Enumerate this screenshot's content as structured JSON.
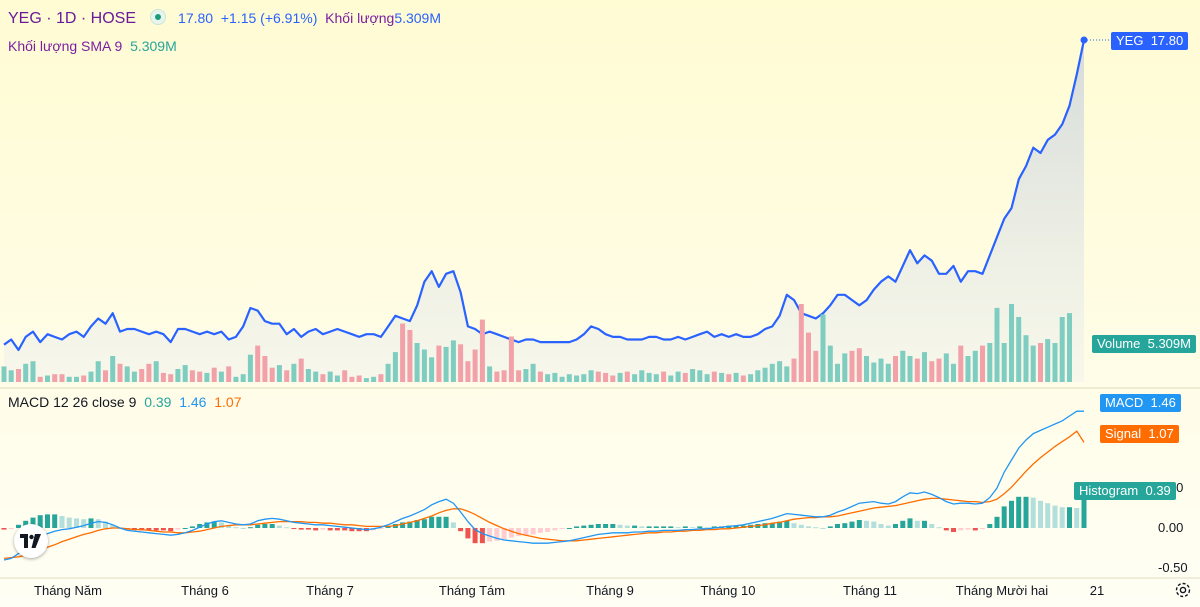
{
  "header": {
    "symbol": "YEG · 1D · HOSE",
    "price": "17.80",
    "change": "+1.15 (+6.91%)",
    "volume_label": "Khối lượng",
    "volume_value": "5.309M"
  },
  "sma_legend": {
    "label": "Khối lượng SMA 9",
    "value": "5.309M"
  },
  "macd_legend": {
    "label": "MACD 12 26 close 9",
    "hist": "0.39",
    "macd": "1.46",
    "signal": "1.07"
  },
  "tags": {
    "price": {
      "name": "YEG",
      "value": "17.80"
    },
    "volume": {
      "name": "Volume",
      "value": "5.309M"
    },
    "macd": {
      "name": "MACD",
      "value": "1.46"
    },
    "signal": {
      "name": "Signal",
      "value": "1.07"
    },
    "histogram": {
      "name": "Histogram",
      "value": "0.39"
    }
  },
  "colors": {
    "price_line": "#2962ff",
    "up": "#26a69a",
    "down": "#ef5350",
    "macd": "#2196f3",
    "signal": "#ff6d00",
    "histogram": "#26a69a",
    "bg_top": "#fffbd6",
    "bg_bottom": "#fffdf0"
  },
  "icons": {
    "logo": "tradingview-logo-icon",
    "settings": "gear-icon"
  },
  "chart_data": [
    {
      "type": "line",
      "series": [
        {
          "name": "YEG",
          "values": []
        }
      ],
      "price_line_values": [
        6.2,
        6.4,
        6.0,
        6.5,
        6.7,
        6.3,
        6.6,
        6.5,
        6.4,
        6.6,
        6.7,
        6.5,
        6.9,
        7.2,
        7.0,
        7.4,
        6.7,
        6.8,
        6.8,
        6.7,
        6.6,
        6.7,
        6.6,
        6.3,
        6.8,
        6.8,
        6.7,
        6.6,
        6.7,
        6.6,
        6.7,
        6.4,
        6.5,
        6.9,
        7.6,
        7.5,
        7.1,
        7.0,
        7.0,
        6.6,
        6.8,
        6.5,
        6.7,
        6.8,
        6.6,
        6.7,
        6.8,
        6.7,
        6.6,
        6.5,
        6.6,
        6.6,
        6.5,
        6.9,
        7.3,
        7.2,
        7.1,
        7.7,
        8.6,
        9.0,
        8.4,
        8.9,
        9.0,
        8.2,
        6.9,
        6.8,
        6.6,
        6.7,
        6.6,
        6.5,
        6.4,
        6.3,
        6.4,
        6.4,
        6.3,
        6.3,
        6.3,
        6.3,
        6.3,
        6.4,
        6.6,
        6.9,
        6.8,
        6.6,
        6.5,
        6.5,
        6.4,
        6.4,
        6.4,
        6.5,
        6.5,
        6.4,
        6.4,
        6.5,
        6.4,
        6.5,
        6.6,
        6.7,
        6.5,
        6.6,
        6.5,
        6.6,
        6.5,
        6.5,
        6.6,
        6.8,
        6.9,
        7.3,
        8.1,
        7.9,
        7.4,
        7.3,
        7.2,
        7.4,
        7.7,
        8.1,
        8.1,
        7.9,
        7.7,
        7.9,
        8.3,
        8.6,
        8.8,
        8.6,
        9.2,
        9.8,
        9.3,
        9.6,
        9.4,
        8.9,
        8.9,
        9.2,
        8.6,
        9.0,
        9.0,
        8.9,
        9.6,
        10.3,
        11.0,
        11.4,
        12.5,
        13.0,
        13.7,
        13.5,
        14.0,
        14.2,
        14.6,
        15.3,
        16.5,
        17.8
      ],
      "volume_values": [
        1.2,
        0.9,
        1.0,
        1.4,
        1.6,
        0.4,
        0.5,
        0.6,
        0.6,
        0.4,
        0.4,
        0.5,
        0.8,
        1.6,
        0.9,
        2.0,
        1.4,
        1.2,
        0.8,
        1.0,
        1.4,
        1.6,
        0.7,
        0.6,
        1.0,
        1.3,
        0.9,
        0.8,
        0.7,
        1.1,
        0.8,
        1.2,
        0.4,
        0.6,
        2.1,
        2.8,
        2.0,
        1.1,
        1.3,
        0.9,
        1.4,
        1.8,
        1.0,
        0.8,
        0.6,
        0.8,
        0.5,
        0.9,
        0.4,
        0.5,
        0.3,
        0.4,
        0.6,
        1.4,
        2.3,
        4.5,
        4.0,
        3.0,
        2.5,
        1.9,
        2.8,
        2.7,
        3.2,
        2.9,
        1.6,
        2.5,
        4.8,
        1.2,
        0.8,
        0.9,
        3.5,
        0.9,
        1.0,
        1.4,
        0.8,
        0.6,
        0.7,
        0.4,
        0.6,
        0.5,
        0.6,
        0.9,
        0.8,
        0.7,
        0.5,
        0.7,
        0.8,
        0.6,
        0.9,
        0.7,
        0.6,
        0.8,
        0.5,
        0.8,
        0.7,
        1.0,
        0.9,
        0.6,
        0.8,
        0.7,
        0.6,
        0.7,
        0.5,
        0.6,
        0.9,
        1.1,
        1.4,
        1.6,
        1.2,
        1.8,
        6.0,
        3.8,
        2.4,
        5.2,
        2.8,
        1.4,
        2.2,
        2.4,
        2.6,
        2.0,
        1.5,
        1.8,
        1.4,
        2.0,
        2.4,
        2.0,
        1.8,
        2.3,
        1.6,
        1.8,
        2.2,
        1.4,
        2.8,
        2.0,
        2.4,
        2.8,
        3.0,
        5.7,
        3.0,
        6.0,
        5.0,
        3.6,
        2.8,
        3.0,
        3.3,
        3.0,
        5.0,
        5.3
      ],
      "x_ticks": [
        "Tháng Năm",
        "Tháng 6",
        "Tháng 7",
        "Tháng Tám",
        "Tháng 9",
        "Tháng 10",
        "Tháng 11",
        "Tháng Mười hai",
        "21"
      ],
      "title": "YEG · 1D · HOSE"
    },
    {
      "type": "line",
      "series": [
        {
          "name": "MACD",
          "values": [
            -0.4,
            -0.38,
            -0.32,
            -0.25,
            -0.18,
            -0.12,
            -0.07,
            -0.04,
            -0.02,
            -0.01,
            0.01,
            0.03,
            0.06,
            0.08,
            0.07,
            0.04,
            0.0,
            -0.03,
            -0.04,
            -0.05,
            -0.06,
            -0.07,
            -0.08,
            -0.09,
            -0.08,
            -0.06,
            -0.03,
            0.01,
            0.05,
            0.08,
            0.09,
            0.07,
            0.05,
            0.04,
            0.05,
            0.09,
            0.11,
            0.12,
            0.11,
            0.09,
            0.07,
            0.06,
            0.05,
            0.04,
            0.04,
            0.03,
            0.02,
            0.01,
            0.0,
            -0.01,
            -0.02,
            -0.01,
            0.01,
            0.04,
            0.08,
            0.12,
            0.15,
            0.19,
            0.23,
            0.29,
            0.33,
            0.36,
            0.31,
            0.2,
            0.08,
            -0.02,
            -0.07,
            -0.1,
            -0.13,
            -0.15,
            -0.16,
            -0.17,
            -0.18,
            -0.19,
            -0.19,
            -0.19,
            -0.18,
            -0.17,
            -0.16,
            -0.14,
            -0.12,
            -0.1,
            -0.08,
            -0.07,
            -0.06,
            -0.06,
            -0.06,
            -0.05,
            -0.05,
            -0.04,
            -0.04,
            -0.03,
            -0.03,
            -0.03,
            -0.02,
            -0.02,
            -0.01,
            -0.01,
            0.0,
            0.01,
            0.02,
            0.03,
            0.04,
            0.06,
            0.08,
            0.1,
            0.12,
            0.15,
            0.18,
            0.17,
            0.16,
            0.15,
            0.14,
            0.14,
            0.16,
            0.2,
            0.23,
            0.27,
            0.31,
            0.32,
            0.33,
            0.31,
            0.3,
            0.33,
            0.39,
            0.44,
            0.43,
            0.45,
            0.42,
            0.38,
            0.33,
            0.3,
            0.31,
            0.31,
            0.3,
            0.31,
            0.38,
            0.5,
            0.7,
            0.85,
            1.0,
            1.1,
            1.18,
            1.22,
            1.26,
            1.3,
            1.34,
            1.4,
            1.46,
            1.46
          ]
        },
        {
          "name": "Signal",
          "values": [
            -0.38,
            -0.37,
            -0.36,
            -0.34,
            -0.31,
            -0.28,
            -0.24,
            -0.21,
            -0.17,
            -0.14,
            -0.11,
            -0.08,
            -0.06,
            -0.03,
            -0.01,
            0.0,
            0.0,
            -0.01,
            -0.02,
            -0.02,
            -0.03,
            -0.04,
            -0.05,
            -0.05,
            -0.06,
            -0.06,
            -0.05,
            -0.04,
            -0.02,
            0.0,
            0.02,
            0.03,
            0.04,
            0.04,
            0.04,
            0.05,
            0.06,
            0.07,
            0.08,
            0.08,
            0.08,
            0.08,
            0.07,
            0.07,
            0.06,
            0.06,
            0.05,
            0.04,
            0.04,
            0.03,
            0.02,
            0.02,
            0.02,
            0.02,
            0.03,
            0.05,
            0.07,
            0.09,
            0.12,
            0.15,
            0.19,
            0.22,
            0.24,
            0.24,
            0.21,
            0.17,
            0.12,
            0.07,
            0.03,
            -0.01,
            -0.04,
            -0.07,
            -0.09,
            -0.11,
            -0.13,
            -0.14,
            -0.15,
            -0.16,
            -0.16,
            -0.16,
            -0.15,
            -0.14,
            -0.13,
            -0.12,
            -0.11,
            -0.1,
            -0.09,
            -0.08,
            -0.07,
            -0.06,
            -0.06,
            -0.05,
            -0.05,
            -0.04,
            -0.04,
            -0.03,
            -0.03,
            -0.02,
            -0.02,
            -0.01,
            -0.01,
            0.0,
            0.01,
            0.02,
            0.03,
            0.04,
            0.06,
            0.07,
            0.09,
            0.11,
            0.12,
            0.13,
            0.13,
            0.14,
            0.14,
            0.15,
            0.17,
            0.19,
            0.21,
            0.23,
            0.25,
            0.26,
            0.27,
            0.28,
            0.3,
            0.32,
            0.34,
            0.36,
            0.37,
            0.37,
            0.36,
            0.35,
            0.34,
            0.33,
            0.33,
            0.32,
            0.33,
            0.36,
            0.43,
            0.51,
            0.61,
            0.71,
            0.8,
            0.88,
            0.95,
            1.02,
            1.08,
            1.14,
            1.21,
            1.07
          ]
        },
        {
          "name": "Histogram",
          "values": []
        }
      ],
      "ylim": [
        -0.6,
        1.6
      ],
      "y_ticks": [
        "0.00",
        "0.50",
        "-0.50"
      ],
      "title": "MACD 12 26 close 9"
    }
  ]
}
